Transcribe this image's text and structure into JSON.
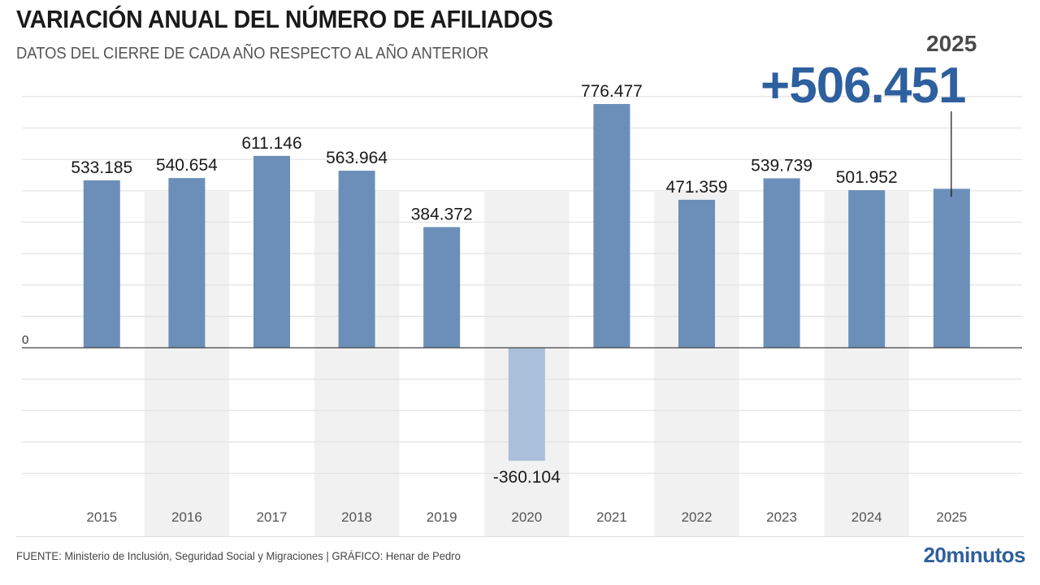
{
  "header": {
    "title": "VARIACIÓN ANUAL DEL NÚMERO DE AFILIADOS",
    "subtitle": "DATOS DEL CIERRE DE CADA AÑO RESPECTO AL AÑO ANTERIOR"
  },
  "highlight": {
    "year": "2025",
    "value": "+506.451"
  },
  "footer": {
    "source": "FUENTE: Ministerio de Inclusión, Seguridad Social y Migraciones  |  GRÁFICO: Henar de Pedro",
    "brand": "20minutos"
  },
  "colors": {
    "bar": "#6b8fb8",
    "bar_negative": "#a9bfda",
    "highlight": "#2e5f9e",
    "band": "#efefef",
    "grid": "#e2e2e2"
  },
  "chart_data": {
    "type": "bar",
    "title": "VARIACIÓN ANUAL DEL NÚMERO DE AFILIADOS",
    "subtitle": "DATOS DEL CIERRE DE CADA AÑO RESPECTO AL AÑO ANTERIOR",
    "xlabel": "",
    "ylabel": "",
    "categories": [
      "2015",
      "2016",
      "2017",
      "2018",
      "2019",
      "2020",
      "2021",
      "2022",
      "2023",
      "2024",
      "2025"
    ],
    "values": [
      533185,
      540654,
      611146,
      563964,
      384372,
      -360104,
      776477,
      471359,
      539739,
      501952,
      506451
    ],
    "value_labels": [
      "533.185",
      "540.654",
      "611.146",
      "563.964",
      "384.372",
      "-360.104",
      "776.477",
      "471.359",
      "539.739",
      "501.952",
      ""
    ],
    "ylim": [
      -400000,
      800000
    ],
    "grid_step": 100000,
    "y_tick_labels": [
      "0"
    ],
    "grid": true,
    "legend": "none",
    "annotation": {
      "category": "2025",
      "text": "+506.451",
      "label": "2025"
    }
  }
}
